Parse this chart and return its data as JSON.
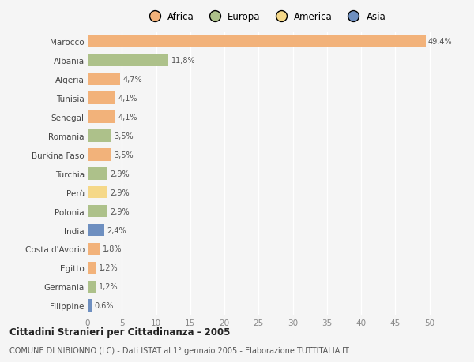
{
  "countries": [
    "Marocco",
    "Albania",
    "Algeria",
    "Tunisia",
    "Senegal",
    "Romania",
    "Burkina Faso",
    "Turchia",
    "Perù",
    "Polonia",
    "India",
    "Costa d'Avorio",
    "Egitto",
    "Germania",
    "Filippine"
  ],
  "values": [
    49.4,
    11.8,
    4.7,
    4.1,
    4.1,
    3.5,
    3.5,
    2.9,
    2.9,
    2.9,
    2.4,
    1.8,
    1.2,
    1.2,
    0.6
  ],
  "labels": [
    "49,4%",
    "11,8%",
    "4,7%",
    "4,1%",
    "4,1%",
    "3,5%",
    "3,5%",
    "2,9%",
    "2,9%",
    "2,9%",
    "2,4%",
    "1,8%",
    "1,2%",
    "1,2%",
    "0,6%"
  ],
  "colors": [
    "#f2b27a",
    "#adc18a",
    "#f2b27a",
    "#f2b27a",
    "#f2b27a",
    "#adc18a",
    "#f2b27a",
    "#adc18a",
    "#f5d888",
    "#adc18a",
    "#6e8fc0",
    "#f2b27a",
    "#f2b27a",
    "#adc18a",
    "#6e8fc0"
  ],
  "legend_labels": [
    "Africa",
    "Europa",
    "America",
    "Asia"
  ],
  "legend_colors": [
    "#f2b27a",
    "#adc18a",
    "#f5d888",
    "#6e8fc0"
  ],
  "title": "Cittadini Stranieri per Cittadinanza - 2005",
  "subtitle": "COMUNE DI NIBIONNO (LC) - Dati ISTAT al 1° gennaio 2005 - Elaborazione TUTTITALIA.IT",
  "xlim": [
    0,
    52
  ],
  "xticks": [
    0,
    5,
    10,
    15,
    20,
    25,
    30,
    35,
    40,
    45,
    50
  ],
  "background_color": "#f5f5f5",
  "bar_height": 0.65
}
